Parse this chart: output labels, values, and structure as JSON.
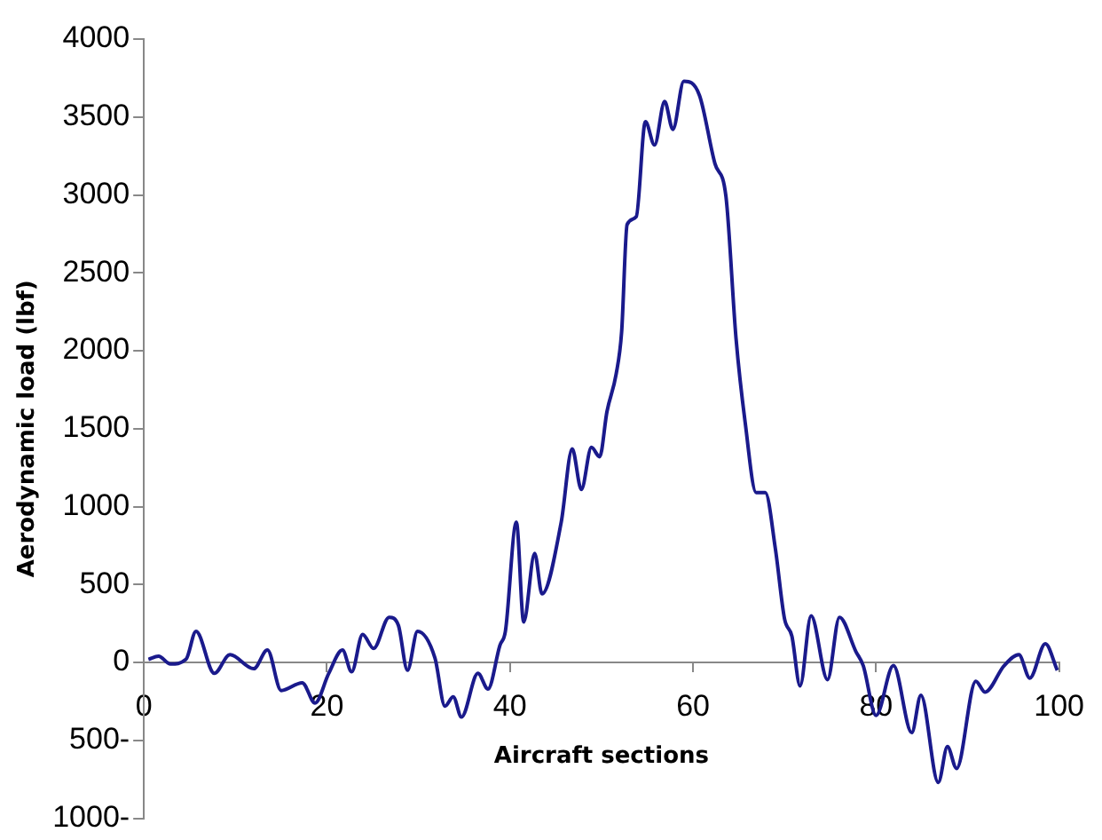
{
  "chart_data": {
    "type": "line",
    "xlabel": "Aircraft sections",
    "ylabel": "Aerodynamic load (lbf)",
    "xlim": [
      0,
      100
    ],
    "xticks": [
      0,
      20,
      40,
      60,
      80,
      100
    ],
    "ylim": [
      -1000,
      4000
    ],
    "yticks": [
      {
        "value": -1000,
        "label": "1000-"
      },
      {
        "value": -500,
        "label": "500-"
      },
      0,
      500,
      1000,
      1500,
      2000,
      2500,
      3000,
      3500,
      4000
    ],
    "grid": false,
    "legend": false,
    "marker": "none",
    "line_style": "solid",
    "x": [
      0.5,
      1.6,
      2.9,
      4.6,
      5.7,
      7.7,
      9.4,
      12,
      13.5,
      15,
      17.3,
      18.7,
      20.2,
      21.7,
      22.7,
      23.9,
      25.1,
      26.8,
      27.8,
      28.8,
      29.9,
      31.8,
      32.9,
      33.8,
      34.7,
      36.5,
      37.6,
      38.9,
      39.5,
      40.7,
      41.5,
      42.7,
      43.5,
      45.6,
      46.8,
      47.8,
      48.9,
      49.8,
      50.6,
      51.6,
      52.2,
      52.8,
      53.8,
      54.8,
      55.8,
      56.9,
      57.8,
      59,
      60.7,
      62.4,
      63.6,
      64.7,
      65.7,
      66.9,
      67.9,
      69,
      70,
      70.8,
      71.7,
      72.9,
      74.7,
      76,
      77.8,
      78.6,
      80,
      81.9,
      83.9,
      84.9,
      86.8,
      87.8,
      88.8,
      90.9,
      91.9,
      94,
      95.6,
      96.8,
      98.5,
      99.8
    ],
    "series": [
      {
        "color": "#1a1a8c",
        "values": [
          20,
          40,
          -10,
          20,
          200,
          -70,
          50,
          -40,
          80,
          -180,
          -130,
          -260,
          -70,
          80,
          -60,
          180,
          90,
          290,
          240,
          -50,
          200,
          30,
          -280,
          -220,
          -350,
          -70,
          -170,
          110,
          200,
          900,
          260,
          700,
          440,
          900,
          1370,
          1110,
          1380,
          1320,
          1610,
          1850,
          2120,
          2810,
          2860,
          3470,
          3320,
          3600,
          3420,
          3730,
          3640,
          3200,
          2990,
          2080,
          1540,
          1090,
          1090,
          730,
          280,
          170,
          -150,
          300,
          -110,
          290,
          70,
          -20,
          -340,
          -20,
          -450,
          -210,
          -770,
          -540,
          -680,
          -120,
          -190,
          -20,
          50,
          -100,
          120,
          -50
        ]
      }
    ]
  }
}
